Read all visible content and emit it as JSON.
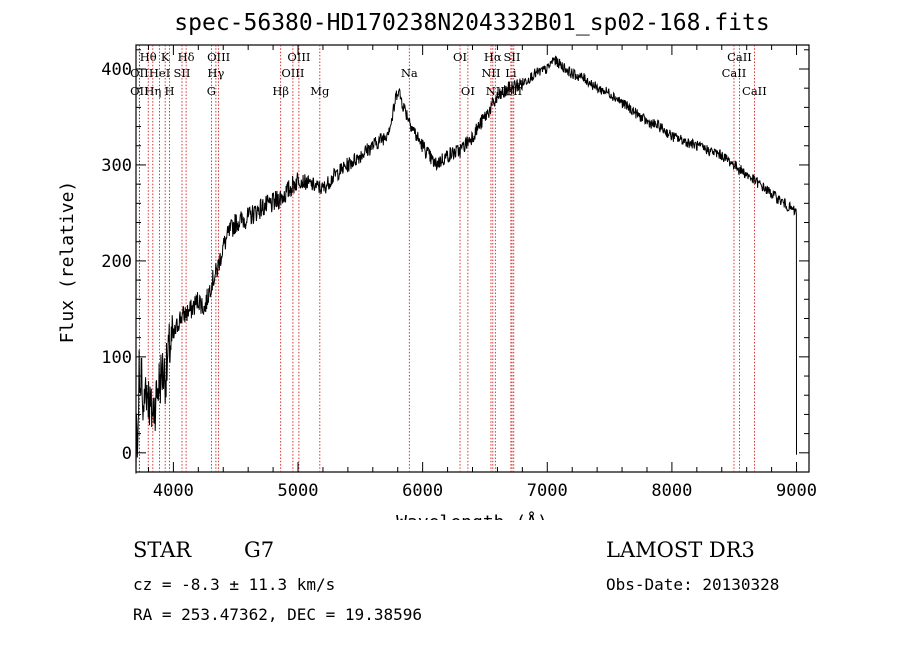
{
  "chart_data": {
    "type": "line",
    "title": "spec-56380-HD170238N204332B01_sp02-168.fits",
    "xlabel": "Wavelength (Å)",
    "ylabel": "Flux (relative)",
    "xlim": [
      3700,
      9100
    ],
    "ylim": [
      -20,
      425
    ],
    "x_ticks": [
      4000,
      5000,
      6000,
      7000,
      8000,
      9000
    ],
    "y_ticks": [
      0,
      100,
      200,
      300,
      400
    ],
    "grid": false,
    "series": [
      {
        "x": [
          3700,
          3730,
          3760,
          3790,
          3820,
          3850,
          3880,
          3910,
          3940,
          3970,
          4000,
          4050,
          4100,
          4150,
          4200,
          4250,
          4300,
          4350,
          4400,
          4450,
          4500,
          4600,
          4700,
          4800,
          4900,
          5000,
          5100,
          5200,
          5300,
          5400,
          5500,
          5600,
          5700,
          5750,
          5800,
          5850,
          5900,
          5950,
          6000,
          6100,
          6200,
          6300,
          6400,
          6500,
          6550,
          6600,
          6650,
          6700,
          6800,
          6900,
          7000,
          7050,
          7100,
          7200,
          7300,
          7400,
          7500,
          7600,
          7700,
          7800,
          7900,
          8000,
          8100,
          8200,
          8300,
          8400,
          8500,
          8550,
          8600,
          8700,
          8800,
          8900,
          9000
        ],
        "y": [
          0,
          100,
          60,
          70,
          40,
          50,
          70,
          85,
          80,
          110,
          120,
          140,
          145,
          150,
          160,
          150,
          175,
          190,
          215,
          230,
          240,
          245,
          255,
          260,
          270,
          285,
          280,
          275,
          290,
          300,
          310,
          320,
          330,
          345,
          380,
          360,
          345,
          330,
          320,
          300,
          310,
          315,
          330,
          350,
          360,
          370,
          375,
          380,
          385,
          395,
          400,
          410,
          405,
          395,
          390,
          380,
          375,
          365,
          355,
          345,
          340,
          330,
          325,
          320,
          315,
          310,
          300,
          295,
          290,
          280,
          270,
          260,
          250
        ]
      }
    ],
    "spectral_lines": [
      {
        "name": "Hθ",
        "x": 3798,
        "row": 1
      },
      {
        "name": "OII",
        "x": 3727,
        "row": 2
      },
      {
        "name": "OII",
        "x": 3727,
        "row": 3
      },
      {
        "name": "Hη",
        "x": 3835,
        "row": 3
      },
      {
        "name": "K",
        "x": 3934,
        "row": 1
      },
      {
        "name": "HeI",
        "x": 3889,
        "row": 2
      },
      {
        "name": "H",
        "x": 3969,
        "row": 3
      },
      {
        "name": "SII",
        "x": 4069,
        "row": 2
      },
      {
        "name": "Hδ",
        "x": 4102,
        "row": 1
      },
      {
        "name": "OIII",
        "x": 4363,
        "row": 1
      },
      {
        "name": "Hγ",
        "x": 4341,
        "row": 2
      },
      {
        "name": "G",
        "x": 4305,
        "row": 3
      },
      {
        "name": "OIII",
        "x": 5007,
        "row": 1
      },
      {
        "name": "OIII",
        "x": 4959,
        "row": 2
      },
      {
        "name": "Hβ",
        "x": 4861,
        "row": 3
      },
      {
        "name": "Mg",
        "x": 5175,
        "row": 3
      },
      {
        "name": "Na",
        "x": 5893,
        "row": 2
      },
      {
        "name": "OI",
        "x": 6300,
        "row": 1
      },
      {
        "name": "OI",
        "x": 6363,
        "row": 3
      },
      {
        "name": "Hα",
        "x": 6563,
        "row": 1
      },
      {
        "name": "NII",
        "x": 6548,
        "row": 2
      },
      {
        "name": "NII",
        "x": 6583,
        "row": 3
      },
      {
        "name": "SII",
        "x": 6717,
        "row": 1
      },
      {
        "name": "Li",
        "x": 6708,
        "row": 2
      },
      {
        "name": "SII",
        "x": 6731,
        "row": 3
      },
      {
        "name": "CaII",
        "x": 8542,
        "row": 1
      },
      {
        "name": "CaII",
        "x": 8498,
        "row": 2
      },
      {
        "name": "CaII",
        "x": 8662,
        "row": 3
      }
    ]
  },
  "info": {
    "object_class": "STAR",
    "subclass": "G7",
    "survey": "LAMOST DR3",
    "redshift_text": "cz = -8.3 ± 11.3 km/s",
    "obs_date": "Obs-Date: 20130328",
    "coords": "RA = 253.47362, DEC =  19.38596"
  },
  "colors": {
    "spectrum": "#000000",
    "line_markers": "#cc0000",
    "background": "#ffffff"
  }
}
